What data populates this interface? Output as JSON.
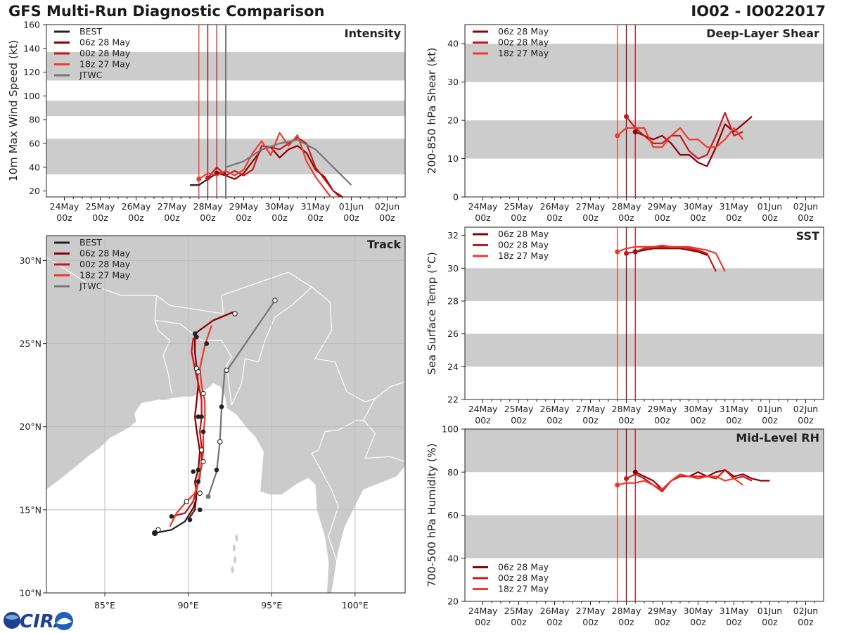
{
  "header": {
    "title": "GFS Multi-Run Diagnostic Comparison",
    "storm_id": "IO02 - IO022017"
  },
  "colors": {
    "best": "#222222",
    "run_06z": "#8b0000",
    "run_00z": "#c8161d",
    "run_18z": "#ee3b2b",
    "jtwc": "#777777",
    "band": "#cccccc",
    "land": "#cbcbcb",
    "grid": "#bdbdbd"
  },
  "time_axis": {
    "ticks": [
      {
        "day": "24May",
        "hour": "00z"
      },
      {
        "day": "25May",
        "hour": "00z"
      },
      {
        "day": "26May",
        "hour": "00z"
      },
      {
        "day": "27May",
        "hour": "00z"
      },
      {
        "day": "28May",
        "hour": "00z"
      },
      {
        "day": "29May",
        "hour": "00z"
      },
      {
        "day": "30May",
        "hour": "00z"
      },
      {
        "day": "31May",
        "hour": "00z"
      },
      {
        "day": "01Jun",
        "hour": "00z"
      },
      {
        "day": "02Jun",
        "hour": "00z"
      }
    ],
    "range_hours": [
      -12,
      228
    ],
    "vlines_hours": [
      {
        "h": 96,
        "run": "run_06z"
      },
      {
        "h": 102,
        "run": "run_00z"
      },
      {
        "h": 90,
        "run": "run_18z"
      }
    ]
  },
  "legend_runs": [
    "06z 28 May",
    "00z 28 May",
    "18z 27 May"
  ],
  "chart_data": [
    {
      "type": "line",
      "id": "intensity",
      "title": "Intensity",
      "ylabel": "10m Max Wind Speed (kt)",
      "ylim": [
        15,
        160
      ],
      "yticks": [
        20,
        40,
        60,
        80,
        100,
        120,
        140,
        160
      ],
      "bands": [
        [
          34,
          64
        ],
        [
          83,
          96
        ],
        [
          113,
          137
        ]
      ],
      "legend": [
        "BEST",
        "06z 28 May",
        "00z 28 May",
        "18z 27 May",
        "JTWC"
      ],
      "jtwc_vline_hours": 108,
      "series": [
        {
          "name": "BEST",
          "color": "best",
          "hours": [
            84,
            90,
            96,
            102,
            108
          ],
          "values": [
            25,
            25,
            30,
            35,
            35
          ],
          "marker_hour": null
        },
        {
          "name": "06z 28 May",
          "color": "run_06z",
          "hours": [
            102,
            108,
            114,
            120,
            126,
            132,
            138,
            144,
            150,
            156,
            162,
            168,
            174,
            180,
            186,
            192
          ],
          "values": [
            35,
            33,
            30,
            35,
            45,
            55,
            57,
            48,
            55,
            58,
            52,
            38,
            32,
            20,
            15,
            10
          ],
          "marker_hour": 102
        },
        {
          "name": "00z 28 May",
          "color": "run_00z",
          "hours": [
            96,
            102,
            108,
            114,
            120,
            126,
            132,
            138,
            144,
            150,
            156,
            162,
            168,
            174,
            180,
            186
          ],
          "values": [
            31,
            40,
            33,
            37,
            33,
            38,
            58,
            57,
            55,
            60,
            65,
            60,
            40,
            30,
            20,
            13
          ],
          "marker_hour": 96
        },
        {
          "name": "18z 27 May",
          "color": "run_18z",
          "hours": [
            90,
            96,
            102,
            108,
            114,
            120,
            126,
            132,
            138,
            144,
            150,
            156,
            162,
            168,
            174,
            180
          ],
          "values": [
            30,
            35,
            33,
            37,
            33,
            38,
            52,
            62,
            50,
            69,
            58,
            67,
            45,
            32,
            22,
            12
          ],
          "marker_hour": 90
        },
        {
          "name": "JTWC",
          "color": "jtwc",
          "hours": [
            108,
            120,
            132,
            144,
            156,
            168,
            180,
            192
          ],
          "values": [
            40,
            45,
            55,
            60,
            63,
            55,
            40,
            25
          ],
          "marker_hour": null
        }
      ]
    },
    {
      "type": "line",
      "id": "shear",
      "title": "Deep-Layer Shear",
      "ylabel": "200-850 hPa Shear (kt)",
      "ylim": [
        0,
        45
      ],
      "yticks": [
        0,
        10,
        20,
        30,
        40
      ],
      "bands": [
        [
          10,
          20
        ],
        [
          30,
          40
        ]
      ],
      "legend": [
        "06z 28 May",
        "00z 28 May",
        "18z 27 May"
      ],
      "series": [
        {
          "name": "06z 28 May",
          "color": "run_06z",
          "hours": [
            102,
            108,
            114,
            120,
            126,
            132,
            138,
            144,
            150,
            156,
            162,
            168,
            174,
            180,
            186,
            192
          ],
          "values": [
            17,
            16,
            15,
            16,
            14,
            11,
            11,
            9,
            8,
            13,
            19,
            17,
            19,
            21,
            null,
            null
          ],
          "marker_hour": 102
        },
        {
          "name": "00z 28 May",
          "color": "run_00z",
          "hours": [
            96,
            102,
            108,
            114,
            120,
            126,
            132,
            138,
            144,
            150,
            156,
            162,
            168,
            174
          ],
          "values": [
            21,
            18,
            16,
            14,
            14,
            16,
            16,
            12,
            10,
            11,
            16,
            22,
            16,
            17
          ],
          "marker_hour": 96
        },
        {
          "name": "18z 27 May",
          "color": "run_18z",
          "hours": [
            90,
            96,
            102,
            108,
            114,
            120,
            126,
            132,
            138,
            144,
            150,
            156,
            162,
            168,
            174
          ],
          "values": [
            16,
            18,
            18,
            18,
            13,
            13,
            16,
            18,
            15,
            15,
            13,
            13,
            15,
            18,
            15
          ],
          "marker_hour": 90
        }
      ]
    },
    {
      "type": "line",
      "id": "sst",
      "title": "SST",
      "ylabel": "Sea Surface Temp (°C)",
      "ylim": [
        22,
        32.5
      ],
      "yticks": [
        22,
        24,
        26,
        28,
        30,
        32
      ],
      "bands": [
        [
          24,
          26
        ],
        [
          28,
          30
        ]
      ],
      "legend": [
        "06z 28 May",
        "00z 28 May",
        "18z 27 May"
      ],
      "series": [
        {
          "name": "06z 28 May",
          "color": "run_06z",
          "hours": [
            102,
            108,
            114,
            120,
            126,
            132,
            138,
            144,
            150
          ],
          "values": [
            31.0,
            31.1,
            31.2,
            31.2,
            31.2,
            31.2,
            31.1,
            31.0,
            30.8
          ],
          "marker_hour": 102
        },
        {
          "name": "00z 28 May",
          "color": "run_00z",
          "hours": [
            96,
            102,
            108,
            114,
            120,
            126,
            132,
            138,
            144,
            150,
            156
          ],
          "values": [
            30.9,
            31.0,
            31.2,
            31.3,
            31.3,
            31.3,
            31.3,
            31.2,
            31.1,
            30.9,
            29.8
          ],
          "marker_hour": 96
        },
        {
          "name": "18z 27 May",
          "color": "run_18z",
          "hours": [
            90,
            96,
            102,
            108,
            114,
            120,
            126,
            132,
            138,
            144,
            150,
            156,
            162
          ],
          "values": [
            31.0,
            31.2,
            31.3,
            31.3,
            31.3,
            31.4,
            31.3,
            31.3,
            31.3,
            31.2,
            31.1,
            30.9,
            29.8
          ],
          "marker_hour": 90
        }
      ]
    },
    {
      "type": "line",
      "id": "rh",
      "title": "Mid-Level RH",
      "ylabel": "700-500 hPa Humidity (%)",
      "ylim": [
        20,
        100
      ],
      "yticks": [
        20,
        40,
        60,
        80,
        100
      ],
      "bands": [
        [
          40,
          60
        ],
        [
          80,
          100
        ]
      ],
      "legend": [
        "06z 28 May",
        "00z 28 May",
        "18z 27 May"
      ],
      "legend_position": "bottom-left",
      "series": [
        {
          "name": "06z 28 May",
          "color": "run_06z",
          "hours": [
            102,
            108,
            114,
            120,
            126,
            132,
            138,
            144,
            150,
            156,
            162,
            168,
            174,
            180,
            186,
            192
          ],
          "values": [
            80,
            78,
            76,
            72,
            76,
            78,
            78,
            80,
            78,
            80,
            81,
            78,
            79,
            77,
            76,
            76
          ],
          "marker_hour": 102
        },
        {
          "name": "00z 28 May",
          "color": "run_00z",
          "hours": [
            96,
            102,
            108,
            114,
            120,
            126,
            132,
            138,
            144,
            150,
            156,
            162,
            168,
            174,
            180
          ],
          "values": [
            77,
            79,
            77,
            74,
            71,
            76,
            78,
            78,
            78,
            78,
            77,
            81,
            77,
            78,
            76
          ],
          "marker_hour": 96
        },
        {
          "name": "18z 27 May",
          "color": "run_18z",
          "hours": [
            90,
            96,
            102,
            108,
            114,
            120,
            126,
            132,
            138,
            144,
            150,
            156,
            162,
            168,
            174
          ],
          "values": [
            74,
            75,
            75,
            76,
            74,
            72,
            76,
            79,
            78,
            77,
            78,
            78,
            76,
            77,
            74
          ],
          "marker_hour": 90
        }
      ]
    },
    {
      "type": "scatter",
      "id": "track",
      "title": "Track",
      "xlim": [
        81.5,
        103
      ],
      "ylim": [
        10,
        31.5
      ],
      "xticks": [
        85,
        90,
        95,
        100
      ],
      "xtick_labels": [
        "85°E",
        "90°E",
        "95°E",
        "100°E"
      ],
      "yticks": [
        10,
        15,
        20,
        25,
        30
      ],
      "ytick_labels": [
        "10°N",
        "15°N",
        "20°N",
        "25°N",
        "30°N"
      ],
      "legend": [
        "BEST",
        "06z 28 May",
        "00z 28 May",
        "18z 27 May",
        "JTWC"
      ],
      "series": [
        {
          "name": "BEST",
          "color": "best",
          "lon": [
            88.0,
            89.0,
            89.8,
            90.3,
            90.5
          ],
          "lat": [
            13.6,
            13.8,
            14.3,
            15.1,
            15.7
          ],
          "filled": [
            true,
            false,
            false,
            false,
            false
          ],
          "start_big": true
        },
        {
          "name": "06z 28 May",
          "color": "run_06z",
          "lon": [
            90.0,
            90.4,
            90.5,
            90.4,
            90.6,
            90.7,
            90.5,
            90.4,
            90.5,
            90.6,
            90.5,
            90.4,
            90.4,
            91.5,
            92.7
          ],
          "lat": [
            14.4,
            15.0,
            16.0,
            16.7,
            17.4,
            18.5,
            19.8,
            20.6,
            21.5,
            22.5,
            23.6,
            24.5,
            25.6,
            26.4,
            26.9
          ],
          "filled": [
            true,
            true,
            true,
            true,
            true,
            true,
            true,
            true,
            true,
            true,
            true,
            true,
            true,
            true,
            false
          ]
        },
        {
          "name": "00z 28 May",
          "color": "run_00z",
          "lon": [
            89.0,
            89.8,
            90.3,
            90.5,
            90.7,
            90.8,
            90.8,
            90.7,
            90.8,
            90.8,
            90.6,
            90.4,
            90.2,
            90.3,
            90.5
          ],
          "lat": [
            14.6,
            14.8,
            15.5,
            16.2,
            17.0,
            17.9,
            18.8,
            19.7,
            20.6,
            21.6,
            22.6,
            23.5,
            24.5,
            25.3,
            25.4
          ],
          "filled": [
            true,
            true,
            true,
            true,
            true,
            true,
            true,
            true,
            true,
            true,
            true,
            true,
            true,
            true,
            true
          ]
        },
        {
          "name": "18z 27 May",
          "color": "run_18z",
          "lon": [
            88.9,
            89.3,
            89.9,
            90.4,
            90.6,
            90.8,
            90.9,
            90.9,
            91.0,
            91.0,
            90.8,
            90.7,
            91.0,
            91.4
          ],
          "lat": [
            14.0,
            14.8,
            15.5,
            16.0,
            16.8,
            17.6,
            18.5,
            19.5,
            20.5,
            21.5,
            22.5,
            23.5,
            24.9,
            26.1
          ],
          "filled": [
            true,
            false,
            true,
            true,
            true,
            true,
            true,
            true,
            true,
            true,
            true,
            true,
            true,
            false
          ]
        },
        {
          "name": "JTWC",
          "color": "jtwc",
          "lon": [
            91.2,
            91.7,
            91.9,
            92.0,
            92.2,
            92.4,
            95.2
          ],
          "lat": [
            15.8,
            17.3,
            19.1,
            21.2,
            23.4,
            23.5,
            27.6
          ],
          "filled": [
            true,
            false,
            false,
            false,
            false,
            false,
            false
          ]
        }
      ],
      "open_markers": [
        {
          "lon": 88.2,
          "lat": 13.8
        },
        {
          "lon": 89.9,
          "lat": 15.5
        },
        {
          "lon": 90.7,
          "lat": 16.0
        },
        {
          "lon": 90.9,
          "lat": 17.9
        },
        {
          "lon": 90.8,
          "lat": 18.6
        },
        {
          "lon": 91.9,
          "lat": 19.1
        },
        {
          "lon": 90.9,
          "lat": 22.0
        },
        {
          "lon": 90.5,
          "lat": 23.5
        },
        {
          "lon": 90.6,
          "lat": 23.3
        },
        {
          "lon": 92.3,
          "lat": 23.4
        },
        {
          "lon": 92.8,
          "lat": 26.8
        },
        {
          "lon": 95.2,
          "lat": 27.6
        }
      ],
      "filled_markers": [
        {
          "lon": 88.0,
          "lat": 13.6,
          "big": true
        },
        {
          "lon": 89.0,
          "lat": 14.6
        },
        {
          "lon": 90.1,
          "lat": 14.4
        },
        {
          "lon": 90.7,
          "lat": 15.0
        },
        {
          "lon": 90.6,
          "lat": 16.7
        },
        {
          "lon": 90.3,
          "lat": 17.3
        },
        {
          "lon": 90.6,
          "lat": 17.4
        },
        {
          "lon": 91.7,
          "lat": 17.4
        },
        {
          "lon": 90.9,
          "lat": 19.7
        },
        {
          "lon": 90.6,
          "lat": 20.6
        },
        {
          "lon": 90.8,
          "lat": 20.6
        },
        {
          "lon": 92.0,
          "lat": 21.2
        },
        {
          "lon": 91.1,
          "lat": 25.0
        },
        {
          "lon": 90.5,
          "lat": 25.4
        },
        {
          "lon": 90.4,
          "lat": 25.6
        }
      ]
    }
  ],
  "logo": {
    "text": "CIRA"
  }
}
